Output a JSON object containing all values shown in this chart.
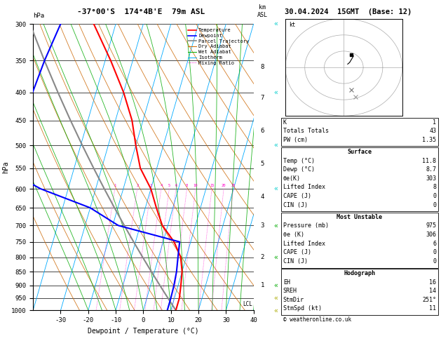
{
  "title_left": "-37°00'S  174°4B'E  79m ASL",
  "title_right": "30.04.2024  15GMT  (Base: 12)",
  "xlabel": "Dewpoint / Temperature (°C)",
  "ylabel_left": "hPa",
  "pmin": 300,
  "pmax": 1000,
  "Tmin": -40,
  "Tmax": 40,
  "skew": 30,
  "pressures": [
    300,
    350,
    400,
    450,
    500,
    550,
    600,
    650,
    700,
    750,
    800,
    850,
    900,
    950,
    1000
  ],
  "isotherm_temps": [
    -40,
    -30,
    -20,
    -10,
    0,
    10,
    20,
    30,
    40
  ],
  "theta_vals": [
    250,
    260,
    270,
    280,
    290,
    300,
    310,
    320,
    330,
    340,
    350,
    360,
    370,
    380,
    390,
    400,
    410,
    420
  ],
  "moist_starts": [
    -20,
    -15,
    -10,
    -5,
    0,
    5,
    10,
    15,
    20,
    25,
    30,
    35,
    40
  ],
  "mr_values": [
    1,
    2,
    3,
    4,
    5,
    6,
    8,
    10,
    15,
    20,
    25
  ],
  "km_p": [
    900,
    800,
    700,
    620,
    540,
    470,
    410,
    360
  ],
  "km_vals": [
    1,
    2,
    3,
    4,
    5,
    6,
    7,
    8
  ],
  "temp_p": [
    300,
    350,
    400,
    450,
    500,
    550,
    600,
    650,
    700,
    750,
    800,
    850,
    900,
    950,
    975,
    1000
  ],
  "temp_T": [
    -48,
    -38,
    -30,
    -24,
    -20,
    -16,
    -10,
    -6,
    -2,
    4,
    8,
    10,
    11,
    11.8,
    11.8,
    11.8
  ],
  "dewp_p": [
    300,
    350,
    400,
    450,
    500,
    550,
    600,
    650,
    700,
    750,
    800,
    850,
    900,
    950,
    975,
    1000
  ],
  "dewp_T": [
    -60,
    -62,
    -63,
    -64,
    -65,
    -66,
    -50,
    -30,
    -18,
    6,
    7,
    8,
    8.5,
    8.7,
    8.7,
    8.7
  ],
  "parcel_p": [
    1000,
    950,
    900,
    850,
    800,
    750,
    700,
    650,
    600,
    550,
    500,
    450,
    400,
    350,
    300
  ],
  "lcl_p": 975,
  "wind_p": [
    300,
    400,
    500,
    600,
    700,
    800,
    900,
    950,
    1000
  ],
  "wind_colors": [
    "#00cccc",
    "#00cccc",
    "#00cccc",
    "#00cccc",
    "#00aa00",
    "#00aa00",
    "#00aa00",
    "#aaaa00",
    "#aaaa00"
  ],
  "hodo_u": [
    2,
    3,
    4,
    5,
    4
  ],
  "hodo_v": [
    2,
    3,
    5,
    7,
    8
  ],
  "color_temp": "#ff0000",
  "color_dewp": "#0000ff",
  "color_parcel": "#888888",
  "color_dry": "#cc6600",
  "color_moist": "#00aa00",
  "color_isotherm": "#00aaff",
  "color_mr": "#ff00cc",
  "stats_general": [
    [
      "K",
      "1"
    ],
    [
      "Totals Totals",
      "43"
    ],
    [
      "PW (cm)",
      "1.35"
    ]
  ],
  "stats_surface_title": "Surface",
  "stats_surface": [
    [
      "Temp (°C)",
      "11.8"
    ],
    [
      "Dewp (°C)",
      "8.7"
    ],
    [
      "θe(K)",
      "303"
    ],
    [
      "Lifted Index",
      "8"
    ],
    [
      "CAPE (J)",
      "0"
    ],
    [
      "CIN (J)",
      "0"
    ]
  ],
  "stats_mu_title": "Most Unstable",
  "stats_mu": [
    [
      "Pressure (mb)",
      "975"
    ],
    [
      "θe (K)",
      "306"
    ],
    [
      "Lifted Index",
      "6"
    ],
    [
      "CAPE (J)",
      "0"
    ],
    [
      "CIN (J)",
      "0"
    ]
  ],
  "stats_hodo_title": "Hodograph",
  "stats_hodo": [
    [
      "EH",
      "16"
    ],
    [
      "SREH",
      "14"
    ],
    [
      "StmDir",
      "251°"
    ],
    [
      "StmSpd (kt)",
      "11"
    ]
  ],
  "copyright": "© weatheronline.co.uk"
}
